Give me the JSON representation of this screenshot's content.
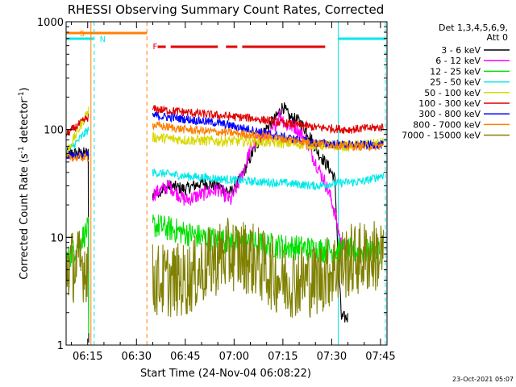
{
  "chart_data": {
    "type": "line",
    "title": "RHESSI Observing Summary Count Rates, Corrected",
    "xlabel": "Start Time (24-Nov-04 06:08:22)",
    "ylabel": "Corrected Count Rate (s⁻¹ detector⁻¹)",
    "ylabel_parts": {
      "main": "Corrected Count Rate (s",
      "sup1": "-1",
      "mid": " detector",
      "sup2": "-1",
      "end": ")"
    },
    "y_scale": "log",
    "ylim": [
      1,
      1000
    ],
    "xlim_minutes": [
      368.37,
      467
    ],
    "x_tick_labels": [
      "06:15",
      "06:30",
      "06:45",
      "07:00",
      "07:15",
      "07:30",
      "07:45"
    ],
    "x_tick_minutes": [
      375,
      390,
      405,
      420,
      435,
      450,
      465
    ],
    "y_tick_labels": [
      "1",
      "10",
      "100",
      "1000"
    ],
    "y_tick_values": [
      1,
      10,
      100,
      1000
    ],
    "timestamp": "23-Oct-2021 05:07",
    "legend": {
      "header": [
        "Det 1,3,4,5,6,9,",
        "Att 0"
      ],
      "entries": [
        {
          "label": "3 - 6 keV",
          "color": "#000000"
        },
        {
          "label": "6 - 12 keV",
          "color": "#ff00ff"
        },
        {
          "label": "12 - 25 keV",
          "color": "#00e000"
        },
        {
          "label": "25 - 50 keV",
          "color": "#00e8e8"
        },
        {
          "label": "50 - 100 keV",
          "color": "#d8d800"
        },
        {
          "label": "100 - 300 keV",
          "color": "#e00000"
        },
        {
          "label": "300 - 800 keV",
          "color": "#0000ff"
        },
        {
          "label": "800 - 7000 keV",
          "color": "#ff8000"
        },
        {
          "label": "7000 - 15000 keV",
          "color": "#808000"
        }
      ]
    },
    "annotations": [
      {
        "text": "S",
        "color": "#ff8000",
        "minute": 372.5
      },
      {
        "text": "N",
        "color": "#00e8e8",
        "minute": 378.7
      },
      {
        "text": "F",
        "color": "#e00000",
        "minute": 395
      }
    ],
    "intervals": {
      "saa": {
        "color": "#ff8000",
        "start": 368.37,
        "end": 393.2
      },
      "night": [
        {
          "color": "#00e8e8",
          "start": 368.37,
          "end": 376.8
        },
        {
          "color": "#00e8e8",
          "start": 452,
          "end": 466.5
        }
      ],
      "flare": {
        "color": "#e00000",
        "segments": [
          [
            396.5,
            399
          ],
          [
            400.5,
            415
          ],
          [
            417.5,
            421
          ],
          [
            422.5,
            448
          ]
        ]
      }
    },
    "vertical_lines": [
      {
        "minute": 377,
        "color": "#00e8e8",
        "style": "dashed"
      },
      {
        "minute": 376,
        "color": "#ff8000",
        "style": "solid"
      },
      {
        "minute": 393.2,
        "color": "#ff8000",
        "style": "dashed"
      },
      {
        "minute": 452,
        "color": "#00e8e8",
        "style": "solid"
      },
      {
        "minute": 466.5,
        "color": "#00e8e8",
        "style": "dashed"
      }
    ],
    "series": [
      {
        "name": "3 - 6 keV",
        "color": "#000000",
        "noise": 0.06,
        "points": [
          [
            368.4,
            60
          ],
          [
            375.2,
            60
          ],
          [
            375.3,
            1
          ],
          [
            395,
            25
          ],
          [
            400,
            30
          ],
          [
            405,
            28
          ],
          [
            410,
            32
          ],
          [
            415,
            30
          ],
          [
            419,
            26
          ],
          [
            422,
            35
          ],
          [
            425,
            55
          ],
          [
            429,
            95
          ],
          [
            433,
            130
          ],
          [
            435,
            165
          ],
          [
            437,
            130
          ],
          [
            440,
            120
          ],
          [
            443,
            90
          ],
          [
            446,
            60
          ],
          [
            449,
            45
          ],
          [
            451,
            35
          ],
          [
            452,
            6
          ],
          [
            453,
            1.8
          ],
          [
            455,
            1.8
          ]
        ]
      },
      {
        "name": "6 - 12 keV",
        "color": "#ff00ff",
        "noise": 0.07,
        "points": [
          [
            395,
            25
          ],
          [
            400,
            30
          ],
          [
            405,
            22
          ],
          [
            410,
            25
          ],
          [
            415,
            28
          ],
          [
            419,
            22
          ],
          [
            422,
            35
          ],
          [
            425,
            65
          ],
          [
            428,
            90
          ],
          [
            431,
            85
          ],
          [
            434,
            140
          ],
          [
            436,
            110
          ],
          [
            439,
            105
          ],
          [
            442,
            80
          ],
          [
            445,
            50
          ],
          [
            448,
            32
          ],
          [
            450,
            22
          ],
          [
            452,
            12
          ],
          [
            453,
            8.5
          ],
          [
            456,
            8
          ]
        ]
      },
      {
        "name": "12 - 25 keV",
        "color": "#00e000",
        "noise": 0.12,
        "points": [
          [
            368.4,
            6
          ],
          [
            375.2,
            12
          ],
          [
            375.3,
            1
          ],
          [
            395,
            13
          ],
          [
            400,
            12
          ],
          [
            410,
            10
          ],
          [
            420,
            9
          ],
          [
            430,
            8.5
          ],
          [
            440,
            8
          ],
          [
            450,
            7.5
          ],
          [
            455,
            7.5
          ],
          [
            458,
            7.3
          ],
          [
            465,
            7.5
          ]
        ]
      },
      {
        "name": "25 - 50 keV",
        "color": "#00e8e8",
        "noise": 0.04,
        "points": [
          [
            368.4,
            60
          ],
          [
            375.2,
            100
          ],
          [
            395,
            40
          ],
          [
            405,
            37
          ],
          [
            415,
            35
          ],
          [
            425,
            33
          ],
          [
            435,
            32
          ],
          [
            445,
            30
          ],
          [
            452,
            32
          ],
          [
            460,
            33
          ],
          [
            466,
            38
          ]
        ]
      },
      {
        "name": "50 - 100 keV",
        "color": "#d8d800",
        "noise": 0.05,
        "points": [
          [
            368.4,
            60
          ],
          [
            375.2,
            150
          ],
          [
            395,
            85
          ],
          [
            405,
            80
          ],
          [
            415,
            78
          ],
          [
            425,
            78
          ],
          [
            435,
            75
          ],
          [
            445,
            72
          ],
          [
            455,
            70
          ],
          [
            466,
            75
          ]
        ]
      },
      {
        "name": "100 - 300 keV",
        "color": "#e00000",
        "noise": 0.04,
        "points": [
          [
            368.4,
            90
          ],
          [
            375.2,
            130
          ],
          [
            395,
            155
          ],
          [
            405,
            145
          ],
          [
            415,
            135
          ],
          [
            425,
            128
          ],
          [
            435,
            115
          ],
          [
            445,
            105
          ],
          [
            455,
            100
          ],
          [
            466,
            105
          ]
        ]
      },
      {
        "name": "300 - 800 keV",
        "color": "#0000ff",
        "noise": 0.04,
        "points": [
          [
            368.4,
            58
          ],
          [
            375.2,
            58
          ],
          [
            395,
            135
          ],
          [
            405,
            125
          ],
          [
            415,
            115
          ],
          [
            425,
            100
          ],
          [
            435,
            85
          ],
          [
            445,
            75
          ],
          [
            455,
            72
          ],
          [
            466,
            72
          ]
        ]
      },
      {
        "name": "800 - 7000 keV",
        "color": "#ff8000",
        "noise": 0.04,
        "points": [
          [
            368.4,
            55
          ],
          [
            375.2,
            55
          ],
          [
            395,
            110
          ],
          [
            405,
            100
          ],
          [
            415,
            95
          ],
          [
            425,
            90
          ],
          [
            435,
            82
          ],
          [
            445,
            75
          ],
          [
            455,
            70
          ],
          [
            466,
            70
          ]
        ]
      },
      {
        "name": "7000 - 15000 keV",
        "color": "#808000",
        "noise": 0.35,
        "points": [
          [
            368.4,
            5.5
          ],
          [
            375.2,
            5.5
          ],
          [
            395,
            4
          ],
          [
            405,
            4
          ],
          [
            410,
            5
          ],
          [
            415,
            6.5
          ],
          [
            420,
            7
          ],
          [
            425,
            6.5
          ],
          [
            430,
            5
          ],
          [
            435,
            4
          ],
          [
            440,
            4
          ],
          [
            445,
            4
          ],
          [
            450,
            5
          ],
          [
            455,
            6
          ],
          [
            460,
            6.5
          ],
          [
            466,
            7
          ]
        ]
      }
    ]
  }
}
